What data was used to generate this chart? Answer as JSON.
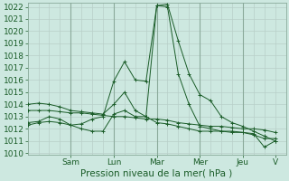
{
  "background_color": "#cde8e0",
  "grid_color": "#b8cfc8",
  "day_line_color": "#8aaa9a",
  "line_color": "#1a5c28",
  "ylabel": "Pression niveau de la mer( hPa )",
  "ylim": [
    1010,
    1022
  ],
  "yticks": [
    1010,
    1011,
    1012,
    1013,
    1014,
    1015,
    1016,
    1017,
    1018,
    1019,
    1020,
    1021,
    1022
  ],
  "day_labels": [
    "Sam",
    "Lun",
    "Mar",
    "Mer",
    "Jeu",
    "V"
  ],
  "day_x": [
    4,
    8,
    12,
    16,
    20,
    23
  ],
  "xlim": [
    0,
    24
  ],
  "num_x_grid": 24,
  "series": [
    {
      "x": [
        0,
        1,
        2,
        3,
        4,
        5,
        6,
        7,
        8,
        9,
        10,
        11,
        12,
        13,
        14,
        15,
        16,
        17,
        18,
        19,
        20,
        21,
        22,
        23
      ],
      "y": [
        1012.3,
        1012.5,
        1012.6,
        1012.5,
        1012.3,
        1012.4,
        1012.8,
        1013.0,
        1015.9,
        1017.5,
        1016.0,
        1015.9,
        1022.1,
        1022.2,
        1019.2,
        1016.5,
        1014.8,
        1014.3,
        1013.0,
        1012.5,
        1012.2,
        1011.8,
        1011.4,
        1011.0
      ]
    },
    {
      "x": [
        0,
        1,
        2,
        3,
        4,
        5,
        6,
        7,
        8,
        9,
        10,
        11,
        12,
        13,
        14,
        15,
        16,
        17,
        18,
        19,
        20,
        21,
        22,
        23
      ],
      "y": [
        1014.0,
        1014.1,
        1014.0,
        1013.8,
        1013.5,
        1013.4,
        1013.3,
        1013.2,
        1014.0,
        1015.0,
        1013.5,
        1013.0,
        1022.1,
        1022.0,
        1016.5,
        1014.0,
        1012.2,
        1012.0,
        1011.8,
        1011.8,
        1011.7,
        1011.6,
        1010.5,
        1011.0
      ]
    },
    {
      "x": [
        0,
        1,
        2,
        3,
        4,
        5,
        6,
        7,
        8,
        9,
        10,
        11,
        12,
        13,
        14,
        15,
        16,
        17,
        18,
        19,
        20,
        21,
        22,
        23
      ],
      "y": [
        1012.5,
        1012.6,
        1013.0,
        1012.8,
        1012.3,
        1012.0,
        1011.8,
        1011.8,
        1013.2,
        1013.5,
        1013.0,
        1013.0,
        1012.5,
        1012.4,
        1012.2,
        1012.0,
        1011.8,
        1011.8,
        1011.8,
        1011.7,
        1011.7,
        1011.5,
        1011.2,
        1011.2
      ]
    },
    {
      "x": [
        0,
        1,
        2,
        3,
        4,
        5,
        6,
        7,
        8,
        9,
        10,
        11,
        12,
        13,
        14,
        15,
        16,
        17,
        18,
        19,
        20,
        21,
        22,
        23
      ],
      "y": [
        1013.5,
        1013.5,
        1013.5,
        1013.4,
        1013.3,
        1013.3,
        1013.2,
        1013.1,
        1013.0,
        1013.0,
        1012.9,
        1012.8,
        1012.8,
        1012.7,
        1012.5,
        1012.4,
        1012.3,
        1012.2,
        1012.2,
        1012.1,
        1012.0,
        1012.0,
        1011.9,
        1011.7
      ]
    }
  ],
  "fontsize_tick": 6.5,
  "fontsize_ylabel": 7.5
}
